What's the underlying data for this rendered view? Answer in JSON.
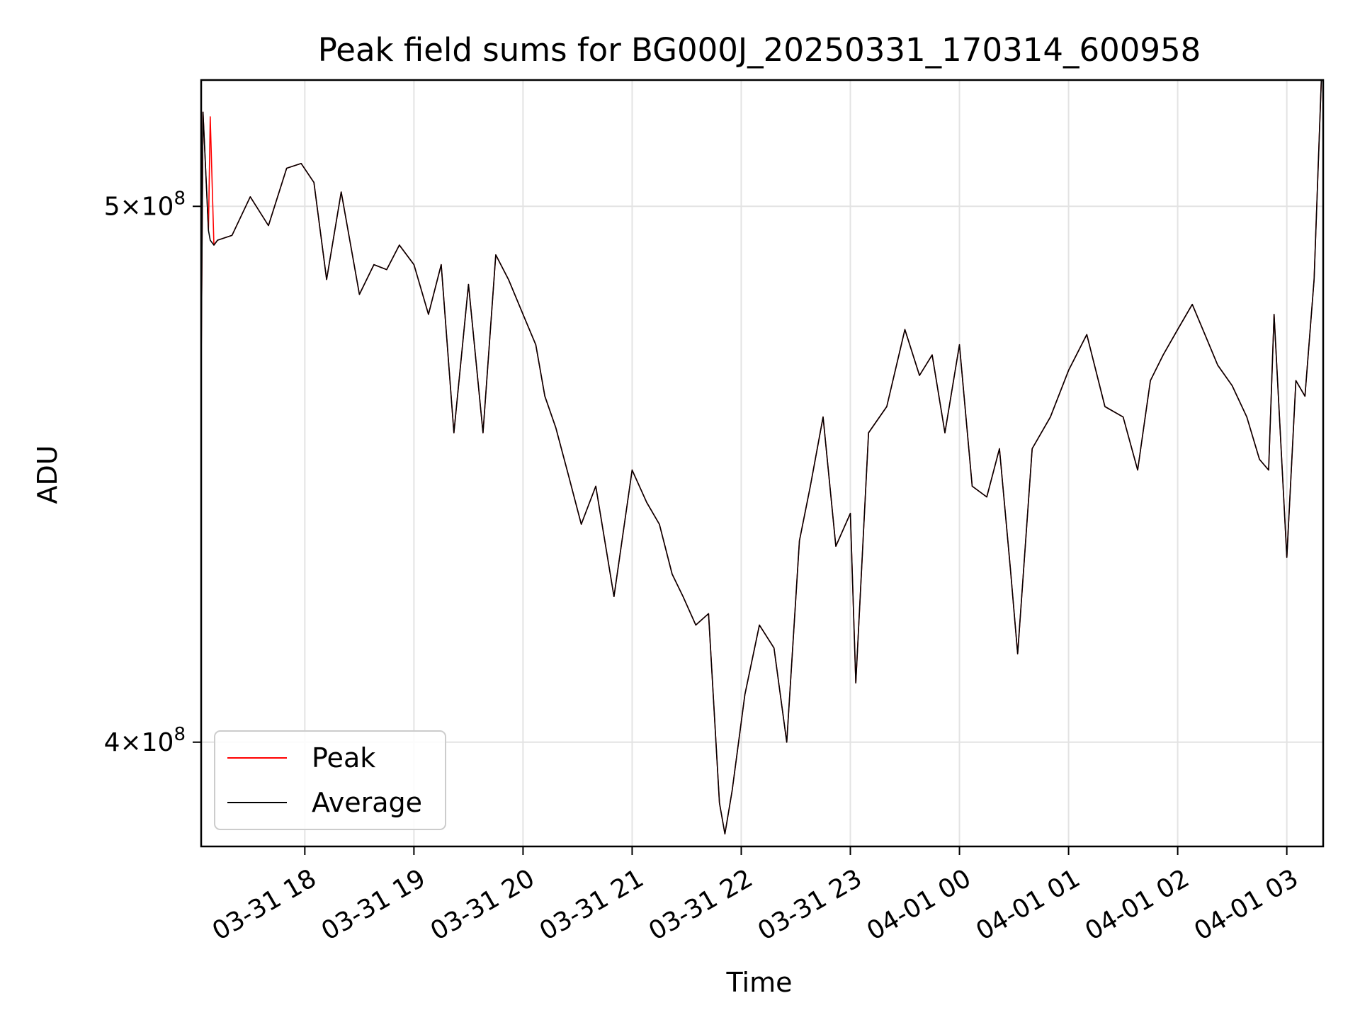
{
  "chart_data": {
    "type": "line",
    "title": "Peak field sums for BG000J_20250331_170314_600958",
    "xlabel": "Time",
    "ylabel": "ADU",
    "yscale": "log",
    "grid": true,
    "legend_position": "lower-left",
    "x_range": [
      "2025-03-31 17:03",
      "2025-04-01 03:20"
    ],
    "ylim": [
      383000000.0,
      527000000.0
    ],
    "x_ticks": [
      "03-31 18",
      "03-31 19",
      "03-31 20",
      "03-31 21",
      "03-31 22",
      "03-31 23",
      "04-01 00",
      "04-01 01",
      "04-01 02",
      "04-01 03"
    ],
    "x_tick_times": [
      "2025-03-31 18:00",
      "2025-03-31 19:00",
      "2025-03-31 20:00",
      "2025-03-31 21:00",
      "2025-03-31 22:00",
      "2025-03-31 23:00",
      "2025-04-01 00:00",
      "2025-04-01 01:00",
      "2025-04-01 02:00",
      "2025-04-01 03:00"
    ],
    "y_ticks": [
      {
        "value": 400000000.0,
        "mantissa": "4",
        "base": "10",
        "exponent": "8"
      },
      {
        "value": 500000000.0,
        "mantissa": "5",
        "base": "10",
        "exponent": "8"
      }
    ],
    "series": [
      {
        "name": "Peak",
        "color": "#ff0000",
        "x": [
          "2025-03-31 17:03",
          "2025-03-31 17:04",
          "2025-03-31 17:07",
          "2025-03-31 17:08",
          "2025-03-31 17:10",
          "2025-03-31 17:12",
          "2025-03-31 17:20",
          "2025-03-31 17:30",
          "2025-03-31 17:40",
          "2025-03-31 17:50",
          "2025-03-31 17:58",
          "2025-03-31 18:05",
          "2025-03-31 18:12",
          "2025-03-31 18:20",
          "2025-03-31 18:30",
          "2025-03-31 18:38",
          "2025-03-31 18:45",
          "2025-03-31 18:52",
          "2025-03-31 19:00",
          "2025-03-31 19:08",
          "2025-03-31 19:15",
          "2025-03-31 19:22",
          "2025-03-31 19:30",
          "2025-03-31 19:38",
          "2025-03-31 19:45",
          "2025-03-31 19:52",
          "2025-03-31 20:00",
          "2025-03-31 20:07",
          "2025-03-31 20:12",
          "2025-03-31 20:18",
          "2025-03-31 20:25",
          "2025-03-31 20:32",
          "2025-03-31 20:40",
          "2025-03-31 20:50",
          "2025-03-31 21:00",
          "2025-03-31 21:08",
          "2025-03-31 21:15",
          "2025-03-31 21:22",
          "2025-03-31 21:28",
          "2025-03-31 21:35",
          "2025-03-31 21:42",
          "2025-03-31 21:48",
          "2025-03-31 21:51",
          "2025-03-31 21:55",
          "2025-03-31 22:02",
          "2025-03-31 22:10",
          "2025-03-31 22:18",
          "2025-03-31 22:25",
          "2025-03-31 22:32",
          "2025-03-31 22:38",
          "2025-03-31 22:45",
          "2025-03-31 22:52",
          "2025-03-31 23:00",
          "2025-03-31 23:03",
          "2025-03-31 23:10",
          "2025-03-31 23:20",
          "2025-03-31 23:30",
          "2025-03-31 23:38",
          "2025-03-31 23:45",
          "2025-03-31 23:52",
          "2025-04-01 00:00",
          "2025-04-01 00:07",
          "2025-04-01 00:15",
          "2025-04-01 00:22",
          "2025-04-01 00:28",
          "2025-04-01 00:32",
          "2025-04-01 00:40",
          "2025-04-01 00:50",
          "2025-04-01 01:00",
          "2025-04-01 01:10",
          "2025-04-01 01:20",
          "2025-04-01 01:30",
          "2025-04-01 01:38",
          "2025-04-01 01:45",
          "2025-04-01 01:52",
          "2025-04-01 02:00",
          "2025-04-01 02:08",
          "2025-04-01 02:15",
          "2025-04-01 02:22",
          "2025-04-01 02:30",
          "2025-04-01 02:38",
          "2025-04-01 02:45",
          "2025-04-01 02:50",
          "2025-04-01 02:53",
          "2025-04-01 03:00",
          "2025-04-01 03:05",
          "2025-04-01 03:10",
          "2025-04-01 03:15",
          "2025-04-01 03:19"
        ],
        "values": [
          468000000.0,
          520000000.0,
          495000000.0,
          519000000.0,
          492000000.0,
          493000000.0,
          494000000.0,
          502000000.0,
          496000000.0,
          508000000.0,
          509000000.0,
          505000000.0,
          485000000.0,
          503000000.0,
          482000000.0,
          488000000.0,
          487000000.0,
          492000000.0,
          488000000.0,
          478000000.0,
          488000000.0,
          455000000.0,
          484000000.0,
          455000000.0,
          490000000.0,
          485000000.0,
          478000000.0,
          472000000.0,
          462000000.0,
          456000000.0,
          447000000.0,
          438000000.0,
          445000000.0,
          425000000.0,
          448000000.0,
          442000000.0,
          438000000.0,
          429000000.0,
          425000000.0,
          420000000.0,
          422000000.0,
          390000000.0,
          385000000.0,
          392000000.0,
          408000000.0,
          420000000.0,
          416000000.0,
          400000000.0,
          435000000.0,
          445000000.0,
          458000000.0,
          434000000.0,
          440000000.0,
          410000000.0,
          455000000.0,
          460000000.0,
          475000000.0,
          466000000.0,
          470000000.0,
          455000000.0,
          472000000.0,
          445000000.0,
          443000000.0,
          452000000.0,
          430000000.0,
          415000000.0,
          452000000.0,
          458000000.0,
          467000000.0,
          474000000.0,
          460000000.0,
          458000000.0,
          448000000.0,
          465000000.0,
          470000000.0,
          475000000.0,
          480000000.0,
          474000000.0,
          468000000.0,
          464000000.0,
          458000000.0,
          450000000.0,
          448000000.0,
          478000000.0,
          432000000.0,
          465000000.0,
          462000000.0,
          485000000.0,
          527000000.0
        ]
      },
      {
        "name": "Average",
        "color": "#000000",
        "x": [
          "2025-03-31 17:03",
          "2025-03-31 17:04",
          "2025-03-31 17:07",
          "2025-03-31 17:08",
          "2025-03-31 17:10",
          "2025-03-31 17:12",
          "2025-03-31 17:20",
          "2025-03-31 17:30",
          "2025-03-31 17:40",
          "2025-03-31 17:50",
          "2025-03-31 17:58",
          "2025-03-31 18:05",
          "2025-03-31 18:12",
          "2025-03-31 18:20",
          "2025-03-31 18:30",
          "2025-03-31 18:38",
          "2025-03-31 18:45",
          "2025-03-31 18:52",
          "2025-03-31 19:00",
          "2025-03-31 19:08",
          "2025-03-31 19:15",
          "2025-03-31 19:22",
          "2025-03-31 19:30",
          "2025-03-31 19:38",
          "2025-03-31 19:45",
          "2025-03-31 19:52",
          "2025-03-31 20:00",
          "2025-03-31 20:07",
          "2025-03-31 20:12",
          "2025-03-31 20:18",
          "2025-03-31 20:25",
          "2025-03-31 20:32",
          "2025-03-31 20:40",
          "2025-03-31 20:50",
          "2025-03-31 21:00",
          "2025-03-31 21:08",
          "2025-03-31 21:15",
          "2025-03-31 21:22",
          "2025-03-31 21:28",
          "2025-03-31 21:35",
          "2025-03-31 21:42",
          "2025-03-31 21:48",
          "2025-03-31 21:51",
          "2025-03-31 21:55",
          "2025-03-31 22:02",
          "2025-03-31 22:10",
          "2025-03-31 22:18",
          "2025-03-31 22:25",
          "2025-03-31 22:32",
          "2025-03-31 22:38",
          "2025-03-31 22:45",
          "2025-03-31 22:52",
          "2025-03-31 23:00",
          "2025-03-31 23:03",
          "2025-03-31 23:10",
          "2025-03-31 23:20",
          "2025-03-31 23:30",
          "2025-03-31 23:38",
          "2025-03-31 23:45",
          "2025-03-31 23:52",
          "2025-04-01 00:00",
          "2025-04-01 00:07",
          "2025-04-01 00:15",
          "2025-04-01 00:22",
          "2025-04-01 00:28",
          "2025-04-01 00:32",
          "2025-04-01 00:40",
          "2025-04-01 00:50",
          "2025-04-01 01:00",
          "2025-04-01 01:10",
          "2025-04-01 01:20",
          "2025-04-01 01:30",
          "2025-04-01 01:38",
          "2025-04-01 01:45",
          "2025-04-01 01:52",
          "2025-04-01 02:00",
          "2025-04-01 02:08",
          "2025-04-01 02:15",
          "2025-04-01 02:22",
          "2025-04-01 02:30",
          "2025-04-01 02:38",
          "2025-04-01 02:45",
          "2025-04-01 02:50",
          "2025-04-01 02:53",
          "2025-04-01 03:00",
          "2025-04-01 03:05",
          "2025-04-01 03:10",
          "2025-04-01 03:15",
          "2025-04-01 03:19"
        ],
        "values": [
          468000000.0,
          520000000.0,
          495000000.0,
          493000000.0,
          492000000.0,
          493000000.0,
          494000000.0,
          502000000.0,
          496000000.0,
          508000000.0,
          509000000.0,
          505000000.0,
          485000000.0,
          503000000.0,
          482000000.0,
          488000000.0,
          487000000.0,
          492000000.0,
          488000000.0,
          478000000.0,
          488000000.0,
          455000000.0,
          484000000.0,
          455000000.0,
          490000000.0,
          485000000.0,
          478000000.0,
          472000000.0,
          462000000.0,
          456000000.0,
          447000000.0,
          438000000.0,
          445000000.0,
          425000000.0,
          448000000.0,
          442000000.0,
          438000000.0,
          429000000.0,
          425000000.0,
          420000000.0,
          422000000.0,
          390000000.0,
          385000000.0,
          392000000.0,
          408000000.0,
          420000000.0,
          416000000.0,
          400000000.0,
          435000000.0,
          445000000.0,
          458000000.0,
          434000000.0,
          440000000.0,
          410000000.0,
          455000000.0,
          460000000.0,
          475000000.0,
          466000000.0,
          470000000.0,
          455000000.0,
          472000000.0,
          445000000.0,
          443000000.0,
          452000000.0,
          430000000.0,
          415000000.0,
          452000000.0,
          458000000.0,
          467000000.0,
          474000000.0,
          460000000.0,
          458000000.0,
          448000000.0,
          465000000.0,
          470000000.0,
          475000000.0,
          480000000.0,
          474000000.0,
          468000000.0,
          464000000.0,
          458000000.0,
          450000000.0,
          448000000.0,
          478000000.0,
          432000000.0,
          465000000.0,
          462000000.0,
          485000000.0,
          527000000.0
        ]
      }
    ]
  }
}
